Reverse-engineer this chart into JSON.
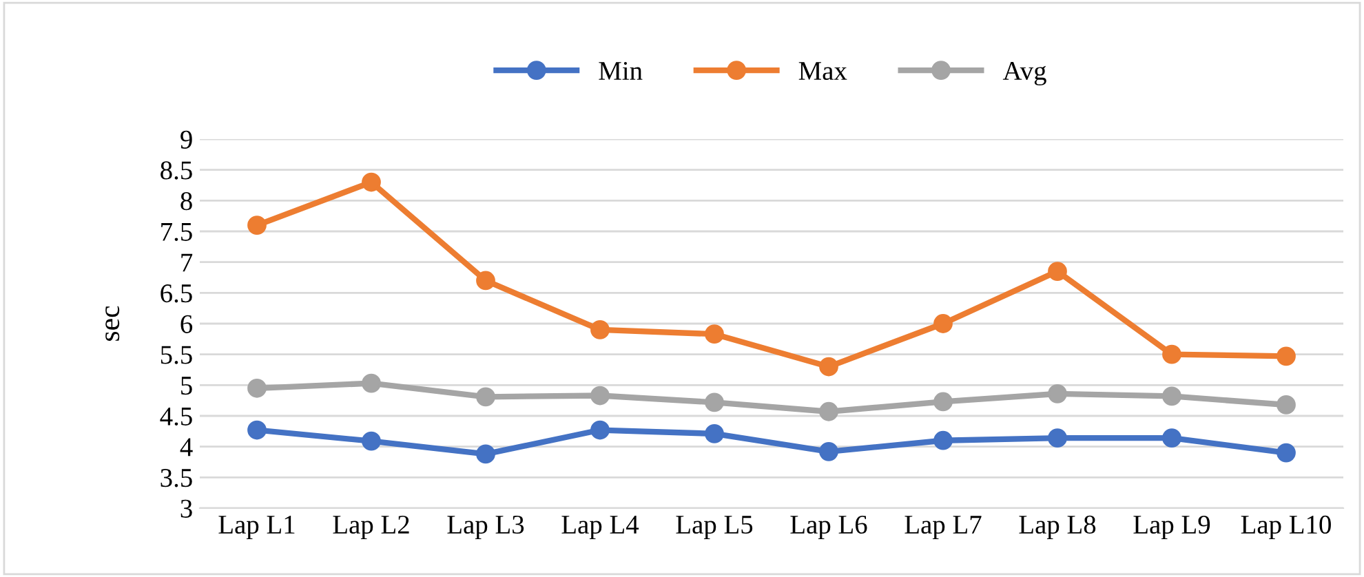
{
  "chart_data": {
    "type": "line",
    "ylabel": "sec",
    "categories": [
      "Lap L1",
      "Lap L2",
      "Lap L3",
      "Lap L4",
      "Lap L5",
      "Lap L6",
      "Lap L7",
      "Lap L8",
      "Lap L9",
      "Lap L10"
    ],
    "series": [
      {
        "name": "Min",
        "color": "#4472c4",
        "values": [
          4.27,
          4.09,
          3.88,
          4.27,
          4.21,
          3.92,
          4.1,
          4.14,
          4.14,
          3.9
        ]
      },
      {
        "name": "Max",
        "color": "#ed7d31",
        "values": [
          7.6,
          8.3,
          6.7,
          5.9,
          5.83,
          5.3,
          6.0,
          6.85,
          5.5,
          5.47
        ]
      },
      {
        "name": "Avg",
        "color": "#a5a5a5",
        "values": [
          4.95,
          5.03,
          4.81,
          4.83,
          4.72,
          4.57,
          4.73,
          4.86,
          4.82,
          4.68
        ]
      }
    ],
    "ylim": [
      3,
      9
    ],
    "yticks": [
      3,
      3.5,
      4,
      4.5,
      5,
      5.5,
      6,
      6.5,
      7,
      7.5,
      8,
      8.5,
      9
    ],
    "grid": "y",
    "legend": "top",
    "marker": "circle",
    "line_style": "solid"
  }
}
